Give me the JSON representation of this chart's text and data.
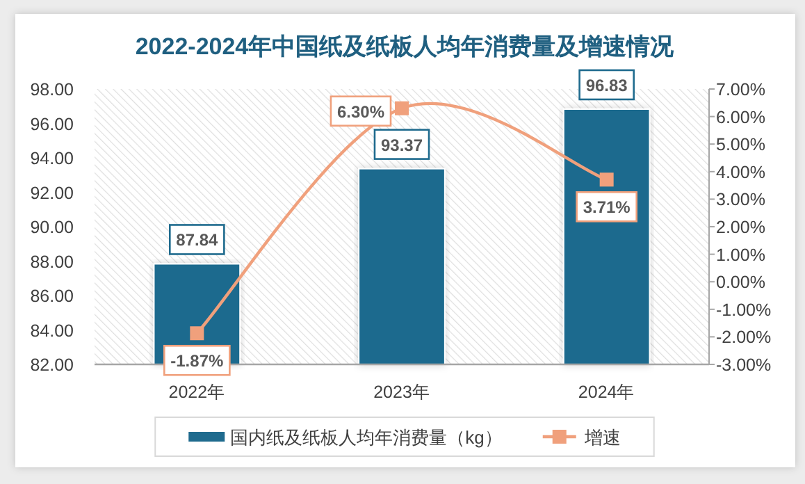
{
  "chart_data": {
    "type": "bar",
    "title": "2022-2024年中国纸及纸板人均年消费量及增速情况",
    "categories": [
      "2022年",
      "2023年",
      "2024年"
    ],
    "series": [
      {
        "name": "国内纸及纸板人均年消费量（kg）",
        "color": "#1f6b8e",
        "values": [
          87.84,
          93.37,
          96.83
        ],
        "value_labels": [
          "87.84",
          "93.37",
          "96.83"
        ]
      },
      {
        "name": "增速",
        "type": "line",
        "axis": "y2",
        "color": "#f0a07c",
        "values": [
          -1.87,
          6.3,
          3.71
        ],
        "value_labels": [
          "-1.87%",
          "6.30%",
          "3.71%"
        ]
      }
    ],
    "ylim": [
      82,
      98
    ],
    "yticks": [
      {
        "value": 82,
        "label": "82.00"
      },
      {
        "value": 84,
        "label": "84.00"
      },
      {
        "value": 86,
        "label": "86.00"
      },
      {
        "value": 88,
        "label": "88.00"
      },
      {
        "value": 90,
        "label": "90.00"
      },
      {
        "value": 92,
        "label": "92.00"
      },
      {
        "value": 94,
        "label": "94.00"
      },
      {
        "value": 96,
        "label": "96.00"
      },
      {
        "value": 98,
        "label": "98.00"
      }
    ],
    "y2lim": [
      -3,
      7
    ],
    "y2ticks": [
      {
        "value": -3,
        "label": "-3.00%"
      },
      {
        "value": -2,
        "label": "-2.00%"
      },
      {
        "value": -1,
        "label": "-1.00%"
      },
      {
        "value": 0,
        "label": "0.00%"
      },
      {
        "value": 1,
        "label": "1.00%"
      },
      {
        "value": 2,
        "label": "2.00%"
      },
      {
        "value": 3,
        "label": "3.00%"
      },
      {
        "value": 4,
        "label": "4.00%"
      },
      {
        "value": 5,
        "label": "5.00%"
      },
      {
        "value": 6,
        "label": "6.00%"
      },
      {
        "value": 7,
        "label": "7.00%"
      }
    ],
    "legend": "bottom",
    "marker": "square",
    "line_style": "solid"
  }
}
